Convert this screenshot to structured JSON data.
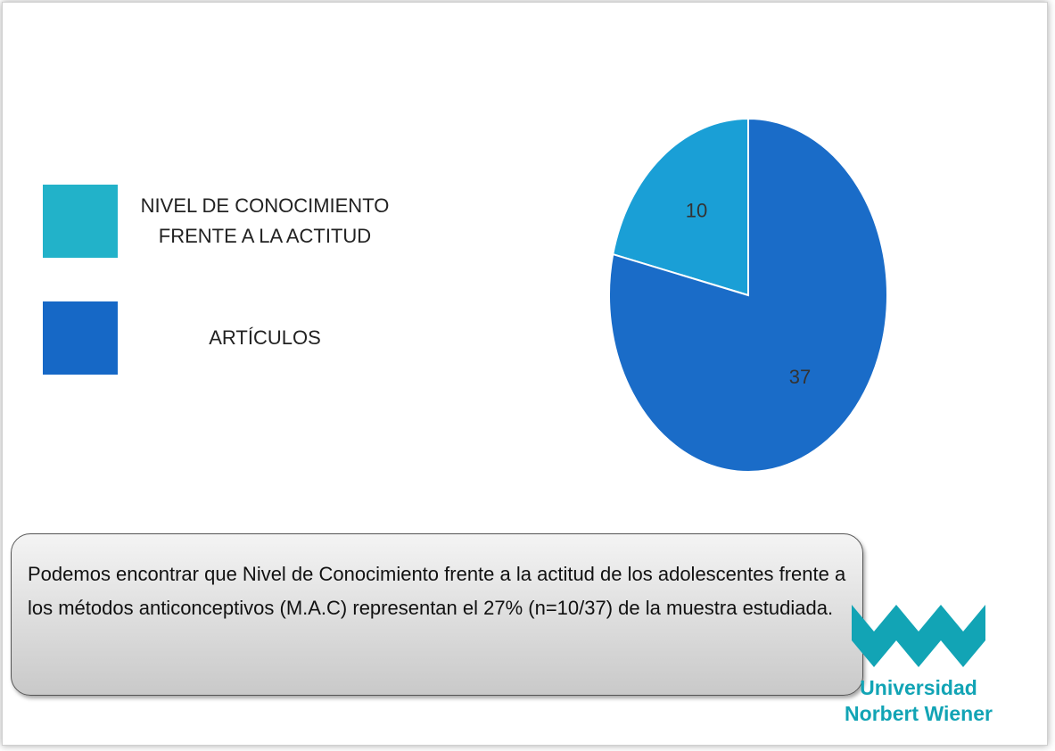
{
  "chart_data": {
    "type": "pie",
    "categories": [
      "NIVEL DE CONOCIMIENTO FRENTE A LA ACTITUD",
      "ARTÍCULOS"
    ],
    "values": [
      10,
      37
    ],
    "colors": [
      "#1a9fd6",
      "#1a6cc8"
    ],
    "legend_colors": [
      "#22b2c9",
      "#1668c6"
    ],
    "legend": "left"
  },
  "note": "Podemos encontrar que Nivel de Conocimiento frente a la actitud de los adolescentes frente a los métodos anticonceptivos (M.A.C) representan el 27% (n=10/37) de la muestra estudiada.",
  "logo": {
    "line1": "Universidad",
    "line2": "Norbert Wiener"
  }
}
